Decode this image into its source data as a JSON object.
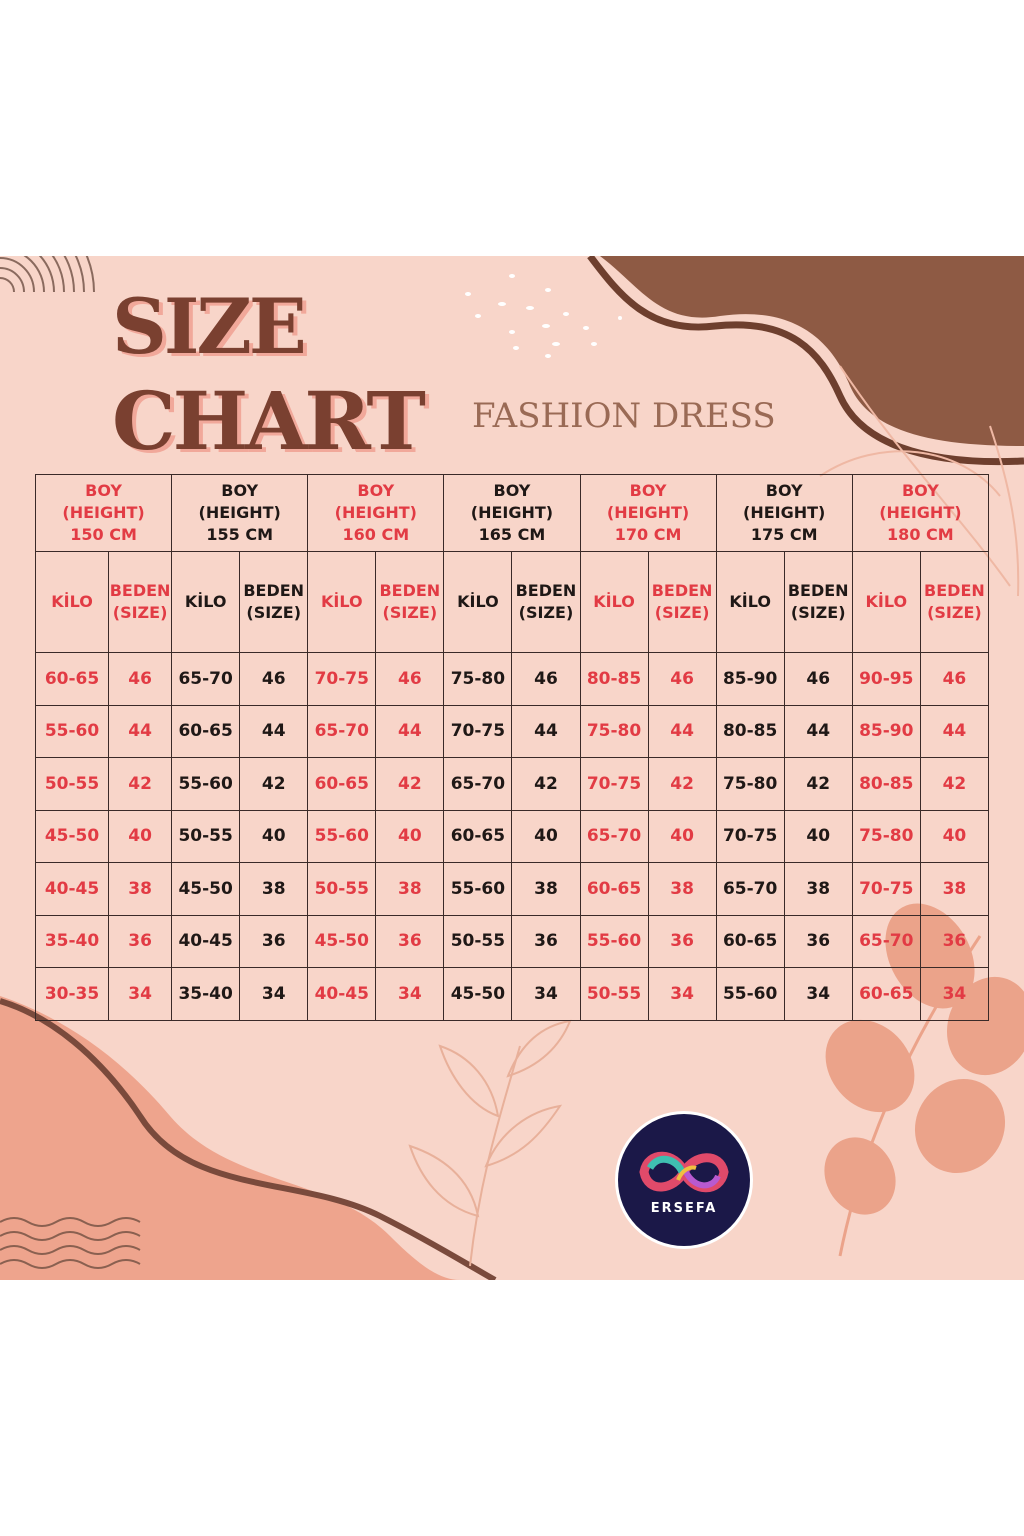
{
  "title": {
    "line1": "SIZE",
    "line2": "CHART"
  },
  "subtitle": "FASHION DRESS",
  "heights": [
    {
      "boy": "BOY",
      "height": "(HEIGHT)",
      "cm": "150 CM",
      "accent": "red"
    },
    {
      "boy": "BOY",
      "height": "(HEIGHT)",
      "cm": "155 CM",
      "accent": "black"
    },
    {
      "boy": "BOY",
      "height": "(HEIGHT)",
      "cm": "160 CM",
      "accent": "red"
    },
    {
      "boy": "BOY",
      "height": "(HEIGHT)",
      "cm": "165 CM",
      "accent": "black"
    },
    {
      "boy": "BOY",
      "height": "(HEIGHT)",
      "cm": "170 CM",
      "accent": "red"
    },
    {
      "boy": "BOY",
      "height": "(HEIGHT)",
      "cm": "175 CM",
      "accent": "black"
    },
    {
      "boy": "BOY",
      "height": "(HEIGHT)",
      "cm": "180 CM",
      "accent": "red"
    }
  ],
  "subheaders": {
    "kilo": "KİLO",
    "beden": "BEDEN",
    "size": "(SIZE)"
  },
  "rows": [
    {
      "size": "46",
      "kilo": [
        "60-65",
        "65-70",
        "70-75",
        "75-80",
        "80-85",
        "85-90",
        "90-95"
      ]
    },
    {
      "size": "44",
      "kilo": [
        "55-60",
        "60-65",
        "65-70",
        "70-75",
        "75-80",
        "80-85",
        "85-90"
      ]
    },
    {
      "size": "42",
      "kilo": [
        "50-55",
        "55-60",
        "60-65",
        "65-70",
        "70-75",
        "75-80",
        "80-85"
      ]
    },
    {
      "size": "40",
      "kilo": [
        "45-50",
        "50-55",
        "55-60",
        "60-65",
        "65-70",
        "70-75",
        "75-80"
      ]
    },
    {
      "size": "38",
      "kilo": [
        "40-45",
        "45-50",
        "50-55",
        "55-60",
        "60-65",
        "65-70",
        "70-75"
      ]
    },
    {
      "size": "36",
      "kilo": [
        "35-40",
        "40-45",
        "45-50",
        "50-55",
        "55-60",
        "60-65",
        "65-70"
      ]
    },
    {
      "size": "34",
      "kilo": [
        "30-35",
        "35-40",
        "40-45",
        "45-50",
        "50-55",
        "55-60",
        "60-65"
      ]
    }
  ],
  "logo": {
    "text": "ERSEFA"
  },
  "colors": {
    "background": "#f8d5c9",
    "accent_red": "#e23b44",
    "title_brown": "#7a4030",
    "blob_brown": "#8e5a44",
    "logo_navy": "#1b1848"
  }
}
